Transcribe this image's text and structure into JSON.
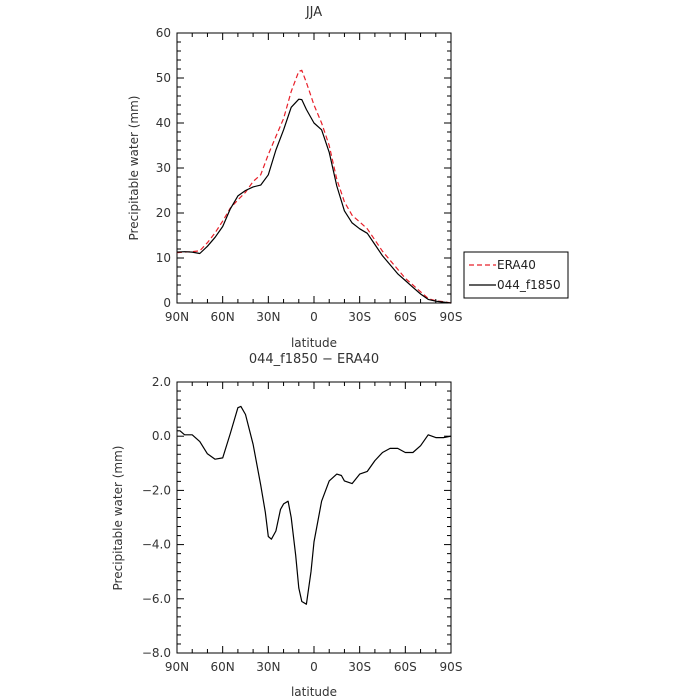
{
  "chart_data": [
    {
      "type": "line",
      "title": "JJA",
      "xlabel": "latitude",
      "ylabel": "Precipitable water (mm)",
      "xlim": [
        90,
        -90
      ],
      "ylim": [
        0,
        60
      ],
      "x_ticks": [
        90,
        60,
        30,
        0,
        -30,
        -60,
        -90
      ],
      "x_tick_labels": [
        "90N",
        "60N",
        "30N",
        "0",
        "30S",
        "60S",
        "90S"
      ],
      "y_ticks": [
        0,
        10,
        20,
        30,
        40,
        50,
        60
      ],
      "y_tick_labels": [
        "0",
        "10",
        "20",
        "30",
        "40",
        "50",
        "60"
      ],
      "legend": "outside-right",
      "series": [
        {
          "name": "ERA40",
          "color": "#e8202a",
          "dash": "dashed",
          "x": [
            90,
            85,
            80,
            75,
            70,
            65,
            60,
            55,
            50,
            45,
            40,
            35,
            30,
            25,
            20,
            15,
            10,
            8,
            5,
            0,
            -5,
            -10,
            -15,
            -20,
            -25,
            -30,
            -35,
            -40,
            -45,
            -50,
            -55,
            -60,
            -65,
            -70,
            -75,
            -80,
            -85,
            -90
          ],
          "values": [
            11.2,
            11.3,
            11.4,
            11.6,
            13.4,
            15.6,
            18.2,
            21.1,
            22.9,
            24.6,
            27.0,
            28.5,
            33.0,
            37.0,
            41.0,
            47.0,
            51.5,
            51.7,
            49.0,
            44.0,
            40.0,
            35.0,
            27.5,
            22.5,
            19.5,
            18.0,
            16.5,
            14.0,
            11.5,
            9.5,
            7.5,
            5.5,
            4.0,
            2.5,
            1.0,
            0.5,
            0.3,
            0.0
          ]
        },
        {
          "name": "044_f1850",
          "color": "#000000",
          "dash": "solid",
          "x": [
            90,
            85,
            80,
            75,
            70,
            65,
            60,
            55,
            50,
            45,
            40,
            35,
            30,
            25,
            20,
            15,
            10,
            8,
            5,
            0,
            -5,
            -10,
            -15,
            -20,
            -25,
            -30,
            -35,
            -40,
            -45,
            -50,
            -55,
            -60,
            -65,
            -70,
            -75,
            -80,
            -85,
            -90
          ],
          "values": [
            11.3,
            11.4,
            11.3,
            11.0,
            12.6,
            14.6,
            17.0,
            20.9,
            23.8,
            25.0,
            25.8,
            26.2,
            28.5,
            34.0,
            38.5,
            43.5,
            45.3,
            45.2,
            43.0,
            40.0,
            38.5,
            33.5,
            26.0,
            20.5,
            17.8,
            16.5,
            15.5,
            13.0,
            10.5,
            8.5,
            6.5,
            5.0,
            3.5,
            2.0,
            0.8,
            0.4,
            0.2,
            0.0
          ]
        }
      ]
    },
    {
      "type": "line",
      "title": "044_f1850 − ERA40",
      "xlabel": "latitude",
      "ylabel": "Precipitable water (mm)",
      "xlim": [
        90,
        -90
      ],
      "ylim": [
        -8,
        2
      ],
      "x_ticks": [
        90,
        60,
        30,
        0,
        -30,
        -60,
        -90
      ],
      "x_tick_labels": [
        "90N",
        "60N",
        "30N",
        "0",
        "30S",
        "60S",
        "90S"
      ],
      "y_ticks": [
        -8,
        -6,
        -4,
        -2,
        0,
        2
      ],
      "y_tick_labels": [
        "−8.0",
        "−6.0",
        "−4.0",
        "−2.0",
        "0.0",
        "2.0"
      ],
      "series": [
        {
          "color": "#000000",
          "dash": "solid",
          "x": [
            90,
            88,
            85,
            80,
            75,
            70,
            65,
            60,
            55,
            50,
            48,
            45,
            40,
            35,
            32,
            30,
            28,
            25,
            22,
            20,
            17,
            15,
            12,
            10,
            8,
            5,
            2,
            0,
            -5,
            -10,
            -15,
            -18,
            -20,
            -25,
            -30,
            -35,
            -40,
            -45,
            -50,
            -55,
            -60,
            -65,
            -70,
            -75,
            -80,
            -85,
            -90
          ],
          "values": [
            0.2,
            0.2,
            0.05,
            0.05,
            -0.2,
            -0.65,
            -0.85,
            -0.8,
            0.1,
            1.05,
            1.1,
            0.8,
            -0.3,
            -1.8,
            -2.8,
            -3.7,
            -3.8,
            -3.5,
            -2.7,
            -2.5,
            -2.4,
            -3.0,
            -4.4,
            -5.6,
            -6.1,
            -6.2,
            -5.0,
            -3.9,
            -2.4,
            -1.65,
            -1.4,
            -1.45,
            -1.65,
            -1.75,
            -1.4,
            -1.3,
            -0.9,
            -0.6,
            -0.45,
            -0.45,
            -0.6,
            -0.6,
            -0.35,
            0.05,
            -0.05,
            -0.05,
            0.0
          ]
        }
      ]
    }
  ]
}
